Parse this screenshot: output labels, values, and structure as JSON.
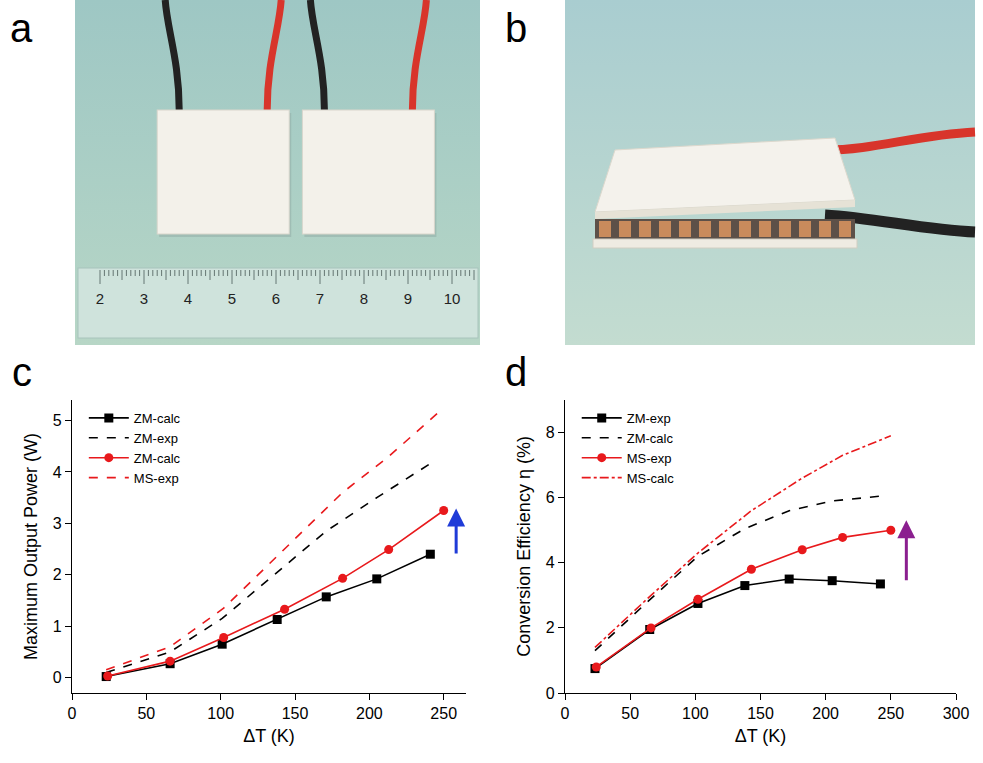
{
  "panel_labels": [
    "a",
    "b",
    "c",
    "d"
  ],
  "photo_a": {
    "ruler_labels": [
      2,
      3,
      4,
      5,
      6,
      7,
      8,
      9,
      10
    ]
  },
  "chart_data": [
    {
      "type": "line",
      "x_label": "ΔT (K)",
      "y_label": "Maximum Output Power (W)",
      "xlim": [
        0,
        265
      ],
      "xticks": [
        0,
        50,
        100,
        150,
        200,
        250
      ],
      "ylim": [
        -0.3,
        5.4
      ],
      "yticks": [
        0,
        1,
        2,
        3,
        4,
        5
      ],
      "grid": false,
      "legend": "top-left",
      "series": [
        {
          "name": "ZM-calc",
          "color": "#000000",
          "marker": "square",
          "line_style": "solid",
          "x": [
            23,
            66,
            101,
            138,
            171,
            205,
            241
          ],
          "values": [
            0.02,
            0.27,
            0.65,
            1.13,
            1.57,
            1.92,
            2.4
          ]
        },
        {
          "name": "ZM-exp",
          "color": "#000000",
          "line_style": "dash",
          "x": [
            23,
            66,
            101,
            138,
            171,
            205,
            243
          ],
          "values": [
            0.1,
            0.5,
            1.15,
            2.05,
            2.85,
            3.5,
            4.2
          ]
        },
        {
          "name": "ZM-calc",
          "color": "#e8191c",
          "marker": "circle",
          "line_style": "solid",
          "x": [
            24,
            66,
            102,
            143,
            182,
            213,
            250
          ],
          "values": [
            0.03,
            0.32,
            0.78,
            1.33,
            1.93,
            2.49,
            3.25
          ]
        },
        {
          "name": "MS-exp",
          "color": "#e8191c",
          "line_style": "dash",
          "x": [
            23,
            66,
            102,
            143,
            182,
            213,
            250
          ],
          "values": [
            0.15,
            0.6,
            1.35,
            2.5,
            3.6,
            4.3,
            5.25
          ]
        }
      ]
    },
    {
      "type": "line",
      "x_label": "ΔT (K)",
      "y_label": "Conversion Efficiency η (%)",
      "xlim": [
        0,
        300
      ],
      "xticks": [
        0,
        50,
        100,
        150,
        200,
        250,
        300
      ],
      "ylim": [
        0,
        9
      ],
      "yticks": [
        0,
        2,
        4,
        6,
        8
      ],
      "grid": false,
      "legend": "top-left",
      "series": [
        {
          "name": "ZM-exp",
          "color": "#000000",
          "marker": "square",
          "line_style": "solid",
          "x": [
            23,
            65,
            102,
            138,
            172,
            205,
            242
          ],
          "values": [
            0.75,
            1.95,
            2.75,
            3.3,
            3.5,
            3.45,
            3.35
          ]
        },
        {
          "name": "ZM-calc",
          "color": "#000000",
          "line_style": "dash",
          "x": [
            23,
            66,
            102,
            138,
            172,
            205,
            243
          ],
          "values": [
            1.3,
            2.9,
            4.2,
            5.05,
            5.6,
            5.9,
            6.05
          ]
        },
        {
          "name": "MS-exp",
          "color": "#e8191c",
          "marker": "circle",
          "line_style": "solid",
          "x": [
            24,
            66,
            102,
            143,
            182,
            213,
            250
          ],
          "values": [
            0.8,
            2.0,
            2.88,
            3.8,
            4.4,
            4.78,
            5.0
          ]
        },
        {
          "name": "MS-calc",
          "color": "#e8191c",
          "line_style": "dashdot",
          "x": [
            23,
            66,
            102,
            143,
            182,
            213,
            250
          ],
          "values": [
            1.4,
            3.0,
            4.3,
            5.6,
            6.6,
            7.3,
            7.9
          ]
        }
      ]
    }
  ]
}
